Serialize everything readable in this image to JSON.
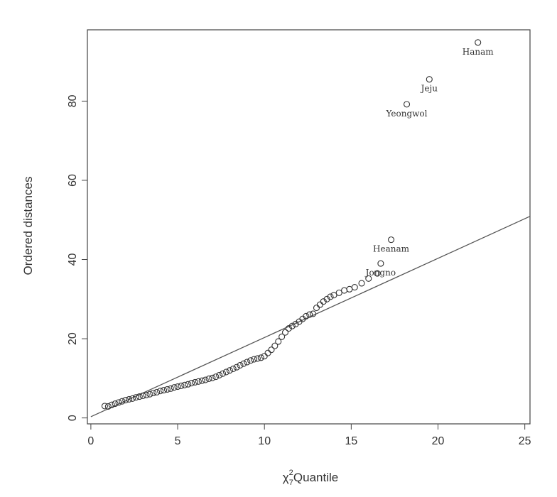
{
  "chart_data": {
    "type": "scatter",
    "xlabel_symbol": "χ",
    "xlabel_sup": "2",
    "xlabel_sub": "7",
    "xlabel_text": "Quantile",
    "ylabel": "Ordered distances",
    "xlim": [
      -0.2,
      25.3
    ],
    "ylim": [
      -1.5,
      98
    ],
    "xticks": [
      0,
      5,
      10,
      15,
      20,
      25
    ],
    "yticks": [
      0,
      20,
      40,
      60,
      80
    ],
    "grid": false,
    "legend": "none",
    "reference_line": {
      "intercept": 0.3,
      "slope": 2.0
    },
    "point_color": "#333333",
    "line_color": "#555555",
    "labeled_points": [
      {
        "label": "Hanam",
        "x": 22.3,
        "y": 94.8
      },
      {
        "label": "Jeju",
        "x": 19.5,
        "y": 85.5
      },
      {
        "label": "Yeongwol",
        "x": 18.2,
        "y": 79.2
      },
      {
        "label": "Heanam",
        "x": 17.3,
        "y": 45.0
      },
      {
        "label": "Jongno",
        "x": 16.7,
        "y": 39.0
      }
    ],
    "points": [
      [
        0.8,
        3.0
      ],
      [
        1.0,
        2.9
      ],
      [
        1.2,
        3.3
      ],
      [
        1.4,
        3.6
      ],
      [
        1.6,
        3.9
      ],
      [
        1.8,
        4.2
      ],
      [
        2.0,
        4.5
      ],
      [
        2.2,
        4.7
      ],
      [
        2.4,
        4.9
      ],
      [
        2.6,
        5.2
      ],
      [
        2.8,
        5.4
      ],
      [
        3.0,
        5.6
      ],
      [
        3.2,
        5.8
      ],
      [
        3.4,
        6.0
      ],
      [
        3.6,
        6.3
      ],
      [
        3.8,
        6.5
      ],
      [
        4.0,
        6.8
      ],
      [
        4.2,
        7.0
      ],
      [
        4.4,
        7.2
      ],
      [
        4.6,
        7.4
      ],
      [
        4.8,
        7.7
      ],
      [
        5.0,
        7.9
      ],
      [
        5.2,
        8.1
      ],
      [
        5.4,
        8.3
      ],
      [
        5.6,
        8.5
      ],
      [
        5.8,
        8.8
      ],
      [
        6.0,
        9.0
      ],
      [
        6.2,
        9.2
      ],
      [
        6.4,
        9.4
      ],
      [
        6.6,
        9.6
      ],
      [
        6.8,
        9.9
      ],
      [
        7.0,
        10.1
      ],
      [
        7.2,
        10.4
      ],
      [
        7.4,
        10.8
      ],
      [
        7.6,
        11.2
      ],
      [
        7.8,
        11.6
      ],
      [
        8.0,
        12.0
      ],
      [
        8.2,
        12.4
      ],
      [
        8.4,
        12.8
      ],
      [
        8.6,
        13.3
      ],
      [
        8.8,
        13.7
      ],
      [
        9.0,
        14.1
      ],
      [
        9.2,
        14.5
      ],
      [
        9.4,
        14.8
      ],
      [
        9.6,
        15.0
      ],
      [
        9.8,
        15.2
      ],
      [
        10.0,
        15.6
      ],
      [
        10.2,
        16.4
      ],
      [
        10.4,
        17.2
      ],
      [
        10.6,
        18.2
      ],
      [
        10.8,
        19.3
      ],
      [
        11.0,
        20.5
      ],
      [
        11.2,
        21.6
      ],
      [
        11.4,
        22.6
      ],
      [
        11.6,
        23.2
      ],
      [
        11.8,
        23.7
      ],
      [
        12.0,
        24.3
      ],
      [
        12.2,
        25.0
      ],
      [
        12.4,
        25.7
      ],
      [
        12.6,
        26.1
      ],
      [
        12.8,
        26.3
      ],
      [
        13.0,
        27.8
      ],
      [
        13.2,
        28.6
      ],
      [
        13.4,
        29.4
      ],
      [
        13.6,
        30.0
      ],
      [
        13.8,
        30.6
      ],
      [
        14.0,
        31.0
      ],
      [
        14.3,
        31.6
      ],
      [
        14.6,
        32.2
      ],
      [
        14.9,
        32.5
      ],
      [
        15.2,
        33.0
      ],
      [
        15.6,
        34.0
      ],
      [
        16.0,
        35.2
      ],
      [
        16.5,
        36.5
      ]
    ]
  }
}
